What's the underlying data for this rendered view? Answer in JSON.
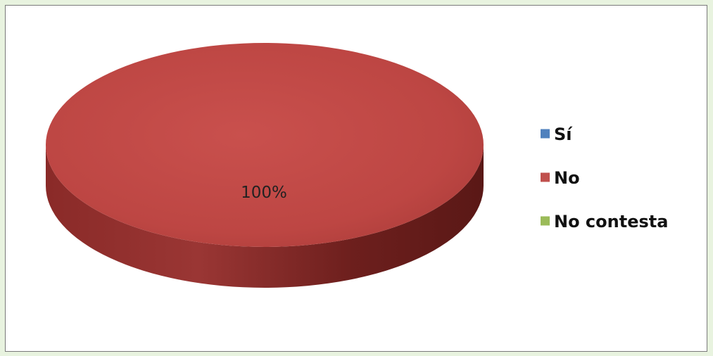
{
  "chart_data": {
    "type": "pie",
    "style": "3d",
    "title": "",
    "categories": [
      "Sí",
      "No",
      "No contesta"
    ],
    "values": [
      0,
      100,
      0
    ],
    "data_labels": [
      "",
      "100%",
      ""
    ],
    "colors": [
      "#4f81bd",
      "#c0504d",
      "#9bbb59"
    ],
    "legend_position": "right"
  }
}
